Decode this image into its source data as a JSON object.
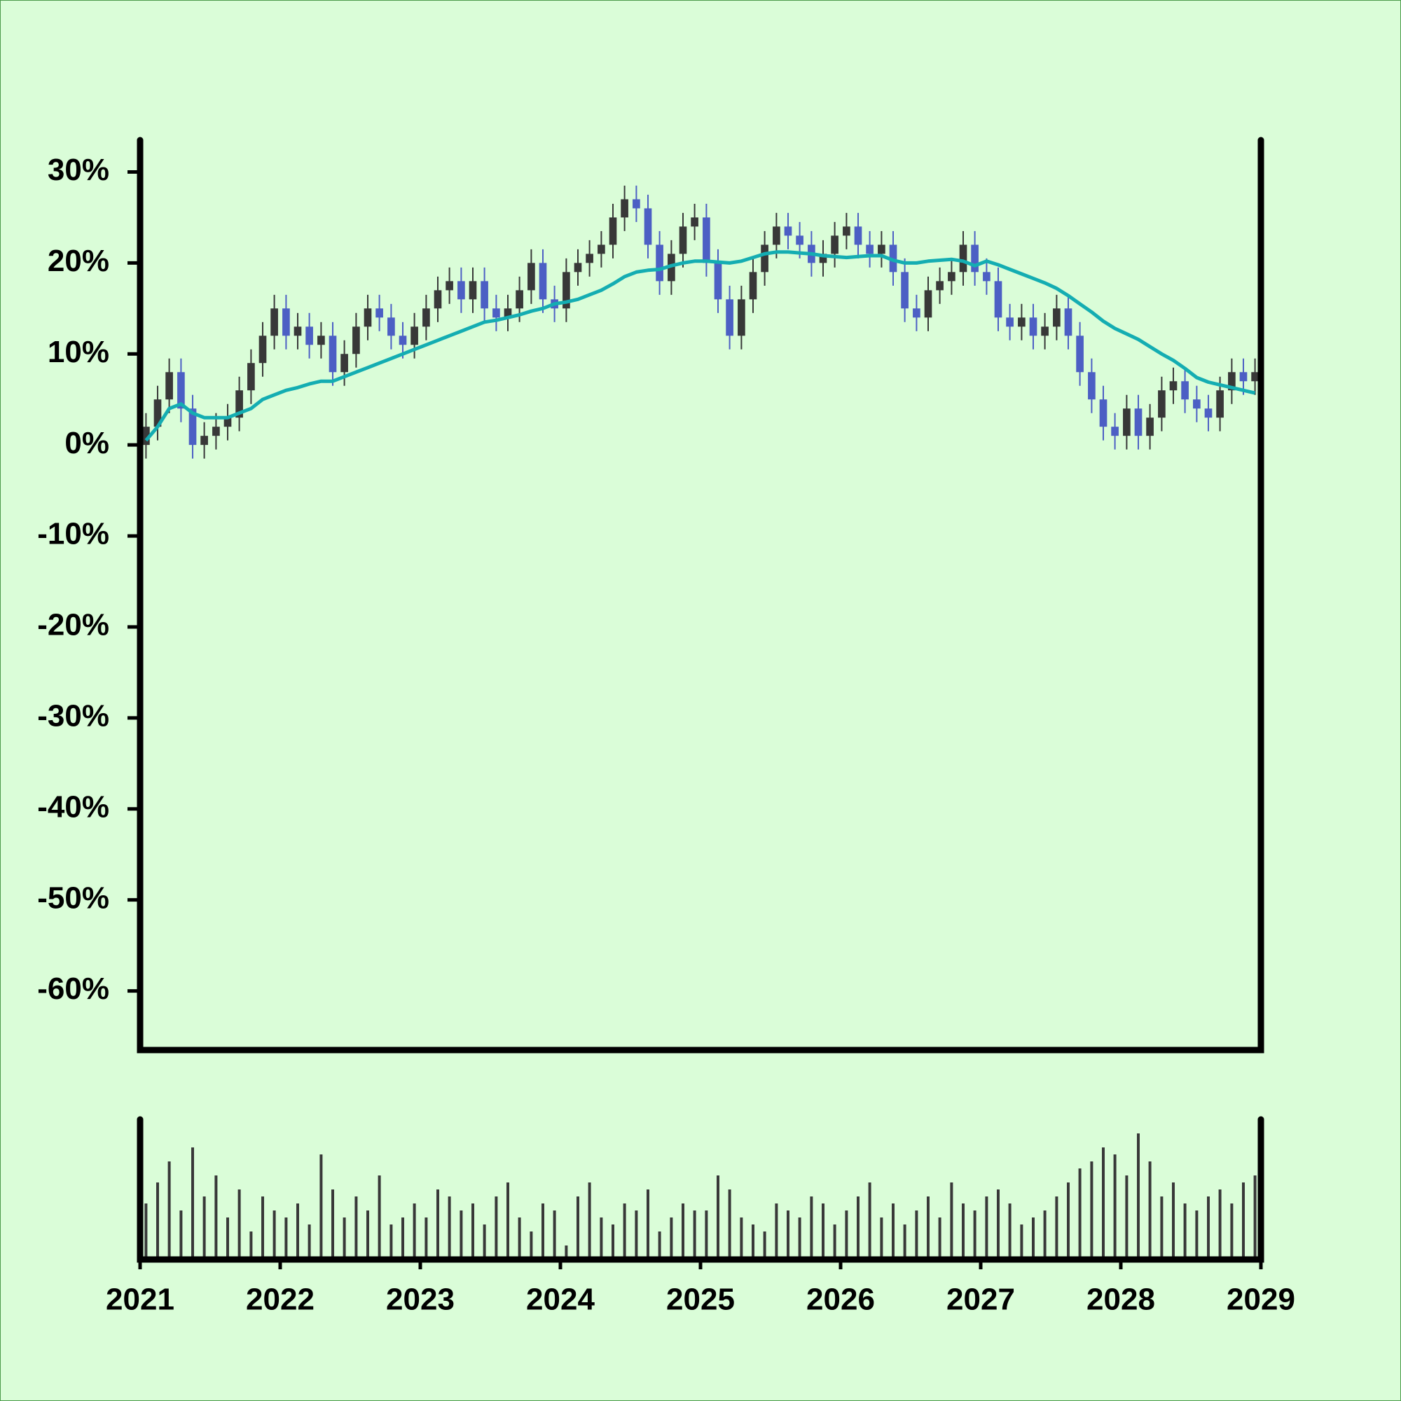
{
  "chart_data": {
    "type": "candlestick",
    "x": [
      2021.042,
      2021.125,
      2021.208,
      2021.292,
      2021.375,
      2021.458,
      2021.542,
      2021.625,
      2021.708,
      2021.792,
      2021.875,
      2021.958,
      2022.042,
      2022.125,
      2022.208,
      2022.292,
      2022.375,
      2022.458,
      2022.542,
      2022.625,
      2022.708,
      2022.792,
      2022.875,
      2022.958,
      2023.042,
      2023.125,
      2023.208,
      2023.292,
      2023.375,
      2023.458,
      2023.542,
      2023.625,
      2023.708,
      2023.792,
      2023.875,
      2023.958,
      2024.042,
      2024.125,
      2024.208,
      2024.292,
      2024.375,
      2024.458,
      2024.542,
      2024.625,
      2024.708,
      2024.792,
      2024.875,
      2024.958,
      2025.042,
      2025.125,
      2025.208,
      2025.292,
      2025.375,
      2025.458,
      2025.542,
      2025.625,
      2025.708,
      2025.792,
      2025.875,
      2025.958,
      2026.042,
      2026.125,
      2026.208,
      2026.292,
      2026.375,
      2026.458,
      2026.542,
      2026.625,
      2026.708,
      2026.792,
      2026.875,
      2026.958,
      2027.042,
      2027.125,
      2027.208,
      2027.292,
      2027.375,
      2027.458,
      2027.542,
      2027.625,
      2027.708,
      2027.792,
      2027.875,
      2027.958,
      2028.042,
      2028.125,
      2028.208,
      2028.292,
      2028.375,
      2028.458,
      2028.542,
      2028.625,
      2028.708,
      2028.792,
      2028.875,
      2028.958
    ],
    "open": [
      0,
      2,
      5,
      8,
      4,
      0,
      1,
      2,
      3,
      6,
      9,
      12,
      15,
      12,
      13,
      11,
      12,
      8,
      10,
      13,
      15,
      14,
      12,
      11,
      13,
      15,
      17,
      18,
      16,
      18,
      15,
      14,
      15,
      17,
      20,
      16,
      15,
      19,
      20,
      21,
      22,
      25,
      27,
      26,
      22,
      18,
      21,
      24,
      25,
      20,
      16,
      12,
      16,
      19,
      22,
      24,
      23,
      22,
      20,
      21,
      23,
      24,
      22,
      21,
      22,
      19,
      15,
      14,
      17,
      18,
      19,
      22,
      19,
      18,
      14,
      13,
      14,
      12,
      13,
      15,
      12,
      8,
      5,
      2,
      1,
      4,
      1,
      3,
      6,
      7,
      5,
      4,
      3,
      6,
      8,
      7
    ],
    "high": [
      3.5,
      6.5,
      9.5,
      9.5,
      5.5,
      2.5,
      3.5,
      4.5,
      7.5,
      10.5,
      13.5,
      16.5,
      16.5,
      14.5,
      14.5,
      13.5,
      13.5,
      11.5,
      14.5,
      16.5,
      16.5,
      15.5,
      13.5,
      14.5,
      16.5,
      18.5,
      19.5,
      19.5,
      19.5,
      19.5,
      16.5,
      16.5,
      18.5,
      21.5,
      21.5,
      17.5,
      20.5,
      21.5,
      22.5,
      23.5,
      26.5,
      28.5,
      28.5,
      27.5,
      23.5,
      22.5,
      25.5,
      26.5,
      26.5,
      21.5,
      17.5,
      17.5,
      20.5,
      23.5,
      25.5,
      25.5,
      24.5,
      23.5,
      22.5,
      24.5,
      25.5,
      25.5,
      23.5,
      23.5,
      23.5,
      20.5,
      16.5,
      18.5,
      19.5,
      20.5,
      23.5,
      23.5,
      20.5,
      19.5,
      15.5,
      15.5,
      15.5,
      14.5,
      16.5,
      16.5,
      13.5,
      9.5,
      6.5,
      3.5,
      5.5,
      5.5,
      4.5,
      7.5,
      8.5,
      8.5,
      6.5,
      5.5,
      7.5,
      9.5,
      9.5,
      9.5
    ],
    "low": [
      -1.5,
      0.5,
      3.5,
      2.5,
      -1.5,
      -1.5,
      -0.5,
      0.5,
      1.5,
      4.5,
      7.5,
      10.5,
      10.5,
      10.5,
      9.5,
      9.5,
      6.5,
      6.5,
      8.5,
      11.5,
      12.5,
      10.5,
      9.5,
      9.5,
      11.5,
      13.5,
      15.5,
      14.5,
      14.5,
      13.5,
      12.5,
      12.5,
      13.5,
      15.5,
      14.5,
      13.5,
      13.5,
      17.5,
      18.5,
      19.5,
      20.5,
      23.5,
      24.5,
      20.5,
      16.5,
      16.5,
      19.5,
      22.5,
      18.5,
      14.5,
      10.5,
      10.5,
      14.5,
      17.5,
      20.5,
      21.5,
      20.5,
      18.5,
      18.5,
      19.5,
      21.5,
      20.5,
      19.5,
      19.5,
      17.5,
      13.5,
      12.5,
      12.5,
      15.5,
      16.5,
      17.5,
      17.5,
      16.5,
      12.5,
      11.5,
      11.5,
      10.5,
      10.5,
      11.5,
      10.5,
      6.5,
      3.5,
      0.5,
      -0.5,
      -0.5,
      -0.5,
      -0.5,
      1.5,
      4.5,
      3.5,
      2.5,
      1.5,
      1.5,
      4.5,
      5.5,
      5.5
    ],
    "close": [
      2,
      5,
      8,
      4,
      0,
      1,
      2,
      3,
      6,
      9,
      12,
      15,
      12,
      13,
      11,
      12,
      8,
      10,
      13,
      15,
      14,
      12,
      11,
      13,
      15,
      17,
      18,
      16,
      18,
      15,
      14,
      15,
      17,
      20,
      16,
      15,
      19,
      20,
      21,
      22,
      25,
      27,
      26,
      22,
      18,
      21,
      24,
      25,
      20,
      16,
      12,
      16,
      19,
      22,
      24,
      23,
      22,
      20,
      21,
      23,
      24,
      22,
      21,
      22,
      19,
      15,
      14,
      17,
      18,
      19,
      22,
      19,
      18,
      14,
      13,
      14,
      12,
      13,
      15,
      12,
      8,
      5,
      2,
      1,
      4,
      1,
      3,
      6,
      7,
      5,
      4,
      3,
      6,
      8,
      7,
      8
    ],
    "up_color": "#383838",
    "down_color": "#4c5fc4",
    "moving_average": {
      "color": "#14adb2",
      "values": [
        0.5,
        2,
        4,
        4.5,
        3.5,
        3,
        3,
        3,
        3.5,
        4,
        5,
        5.5,
        6,
        6.3,
        6.7,
        7,
        7,
        7.5,
        8,
        8.5,
        9,
        9.5,
        10,
        10.5,
        11,
        11.5,
        12,
        12.5,
        13,
        13.5,
        13.7,
        14,
        14.3,
        14.7,
        15,
        15.5,
        15.7,
        16,
        16.5,
        17,
        17.7,
        18.5,
        19,
        19.2,
        19.3,
        19.7,
        20,
        20.2,
        20.2,
        20.1,
        20,
        20.2,
        20.6,
        21,
        21.2,
        21.2,
        21.1,
        21,
        20.8,
        20.7,
        20.6,
        20.7,
        20.8,
        20.8,
        20.3,
        20,
        20,
        20.2,
        20.3,
        20.4,
        20.2,
        19.7,
        20.2,
        19.8,
        19.3,
        18.8,
        18.3,
        17.8,
        17.2,
        16.4,
        15.5,
        14.6,
        13.6,
        12.8,
        12.2,
        11.6,
        10.8,
        10,
        9.3,
        8.4,
        7.4,
        6.9,
        6.6,
        6.3,
        6,
        5.7
      ]
    },
    "volume": {
      "color": "#383838",
      "ylim": [
        0,
        100
      ],
      "values": [
        40,
        55,
        70,
        35,
        80,
        45,
        60,
        30,
        50,
        20,
        45,
        35,
        30,
        40,
        25,
        75,
        50,
        30,
        45,
        35,
        60,
        25,
        30,
        40,
        30,
        50,
        45,
        35,
        40,
        25,
        45,
        55,
        30,
        20,
        40,
        35,
        10,
        45,
        55,
        30,
        25,
        40,
        35,
        50,
        20,
        30,
        40,
        35,
        35,
        60,
        50,
        30,
        25,
        20,
        40,
        35,
        30,
        45,
        40,
        25,
        35,
        45,
        55,
        30,
        40,
        25,
        35,
        45,
        30,
        55,
        40,
        35,
        45,
        50,
        40,
        25,
        30,
        35,
        45,
        55,
        65,
        70,
        80,
        75,
        60,
        90,
        70,
        45,
        55,
        40,
        35,
        45,
        50,
        40,
        55,
        60
      ]
    },
    "xlim": [
      2021,
      2029
    ],
    "xticks": [
      2021,
      2022,
      2023,
      2024,
      2025,
      2026,
      2027,
      2028,
      2029
    ],
    "ylim": [
      -66.5,
      33.5
    ],
    "yticks": [
      {
        "value": -60,
        "label": "-60%"
      },
      {
        "value": -50,
        "label": "-50%"
      },
      {
        "value": -40,
        "label": "-40%"
      },
      {
        "value": -30,
        "label": "-30%"
      },
      {
        "value": -20,
        "label": "-20%"
      },
      {
        "value": -10,
        "label": "-10%"
      },
      {
        "value": 0,
        "label": "0%"
      },
      {
        "value": 10,
        "label": "10%"
      },
      {
        "value": 20,
        "label": "20%"
      },
      {
        "value": 30,
        "label": "30%"
      }
    ]
  }
}
